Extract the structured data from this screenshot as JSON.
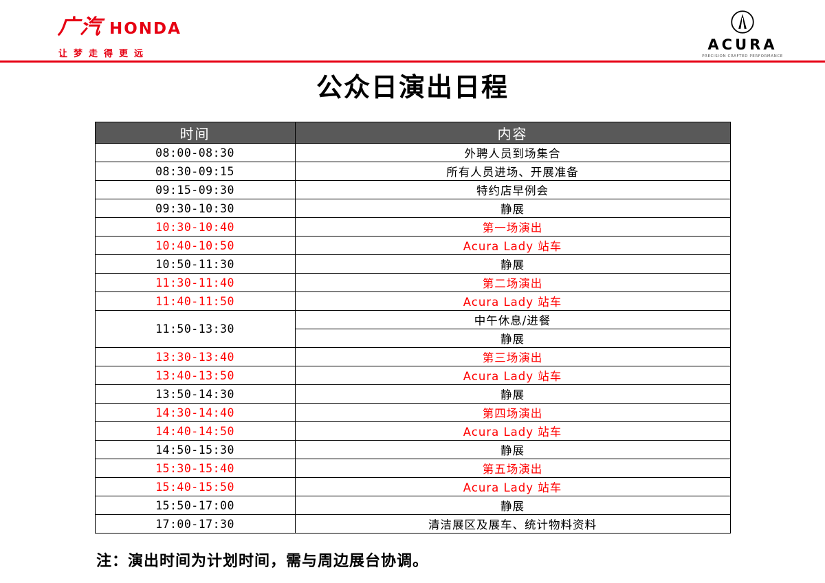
{
  "header": {
    "honda_brand_cn": "广汽",
    "honda_brand_en": "HONDA",
    "honda_tagline": "让梦走得更远",
    "acura_brand": "ACURA",
    "acura_tagline": "PRECISION CRAFTED PERFORMANCE"
  },
  "title": "公众日演出日程",
  "colors": {
    "brand_red": "#e60012",
    "highlight_red": "#ff0000",
    "header_gray": "#595959"
  },
  "table": {
    "columns": [
      "时间",
      "内容"
    ],
    "rows": [
      {
        "time": "08:00-08:30",
        "content": "外聘人员到场集合",
        "red": false
      },
      {
        "time": "08:30-09:15",
        "content": "所有人员进场、开展准备",
        "red": false
      },
      {
        "time": "09:15-09:30",
        "content": "特约店早例会",
        "red": false
      },
      {
        "time": "09:30-10:30",
        "content": "静展",
        "red": false
      },
      {
        "time": "10:30-10:40",
        "content": "第一场演出",
        "red": true
      },
      {
        "time": "10:40-10:50",
        "content": "Acura Lady 站车",
        "red": true
      },
      {
        "time": "10:50-11:30",
        "content": "静展",
        "red": false
      },
      {
        "time": "11:30-11:40",
        "content": "第二场演出",
        "red": true
      },
      {
        "time": "11:40-11:50",
        "content": "Acura Lady 站车",
        "red": true
      },
      {
        "time": "11:50-13:30",
        "contents": [
          "中午休息/进餐",
          "静展"
        ],
        "red": false
      },
      {
        "time": "13:30-13:40",
        "content": "第三场演出",
        "red": true
      },
      {
        "time": "13:40-13:50",
        "content": "Acura Lady 站车",
        "red": true
      },
      {
        "time": "13:50-14:30",
        "content": "静展",
        "red": false
      },
      {
        "time": "14:30-14:40",
        "content": "第四场演出",
        "red": true
      },
      {
        "time": "14:40-14:50",
        "content": "Acura Lady 站车",
        "red": true
      },
      {
        "time": "14:50-15:30",
        "content": "静展",
        "red": false
      },
      {
        "time": "15:30-15:40",
        "content": "第五场演出",
        "red": true
      },
      {
        "time": "15:40-15:50",
        "content": "Acura Lady 站车",
        "red": true
      },
      {
        "time": "15:50-17:00",
        "content": "静展",
        "red": false
      },
      {
        "time": "17:00-17:30",
        "content": "清洁展区及展车、统计物料资料",
        "red": false
      }
    ]
  },
  "note": "注：演出时间为计划时间，需与周边展台协调。"
}
